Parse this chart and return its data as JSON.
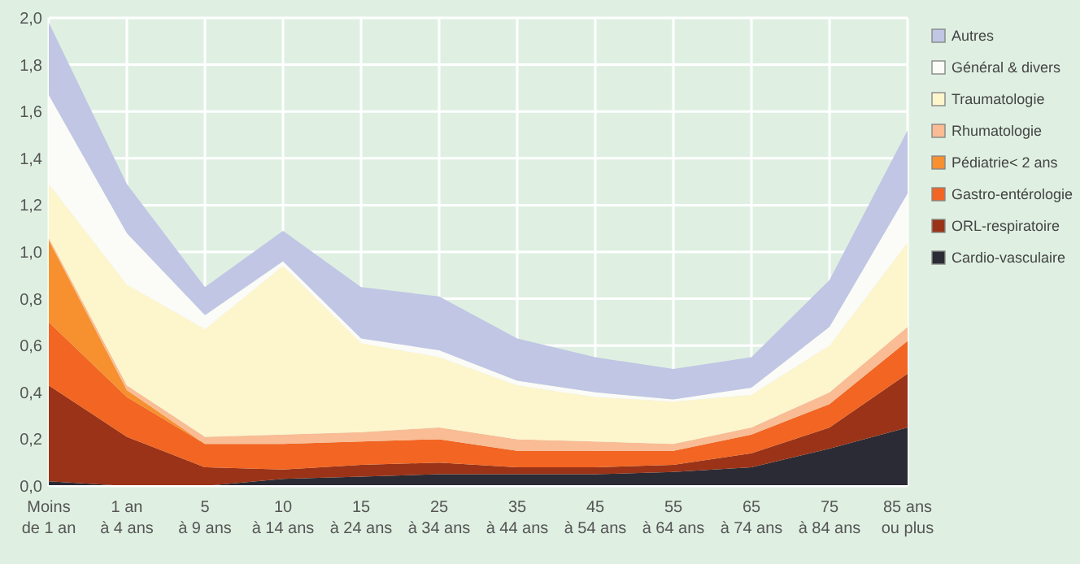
{
  "chart_data": {
    "type": "area",
    "stacked": true,
    "grid": true,
    "legend": "right",
    "categories": [
      "Moins\nde 1 an",
      "1 an\nà 4 ans",
      "5\nà 9 ans",
      "10\nà 14 ans",
      "15\nà 24 ans",
      "25\nà 34 ans",
      "35\nà 44 ans",
      "45\nà 54 ans",
      "55\nà 64 ans",
      "65\nà 74 ans",
      "75\nà 84 ans",
      "85 ans\nou plus"
    ],
    "ylim": [
      0,
      2
    ],
    "yticks": [
      {
        "value": 0,
        "label": "0,0"
      },
      {
        "value": 0.2,
        "label": "0,2"
      },
      {
        "value": 0.4,
        "label": "0,4"
      },
      {
        "value": 0.6,
        "label": "0,6"
      },
      {
        "value": 0.8,
        "label": "0,8"
      },
      {
        "value": 1,
        "label": "1,0"
      },
      {
        "value": 1.2,
        "label": "1,2"
      },
      {
        "value": 1.4,
        "label": "1,4"
      },
      {
        "value": 1.6,
        "label": "1,6"
      },
      {
        "value": 1.8,
        "label": "1,8"
      },
      {
        "value": 2,
        "label": "2,0"
      }
    ],
    "series": [
      {
        "name": "Cardio-vasculaire",
        "color": "#2b2b35",
        "values": [
          0.02,
          0,
          0,
          0.03,
          0.04,
          0.05,
          0.05,
          0.05,
          0.06,
          0.08,
          0.16,
          0.25
        ]
      },
      {
        "name": "ORL-respiratoire",
        "color": "#9a3318",
        "values": [
          0.41,
          0.21,
          0.08,
          0.04,
          0.05,
          0.05,
          0.03,
          0.03,
          0.03,
          0.06,
          0.09,
          0.23
        ]
      },
      {
        "name": "Gastro-entérologie",
        "color": "#f26522",
        "values": [
          0.27,
          0.17,
          0.1,
          0.11,
          0.1,
          0.1,
          0.07,
          0.07,
          0.06,
          0.08,
          0.1,
          0.14
        ]
      },
      {
        "name": "Pédiatrie< 2 ans",
        "color": "#f7902f",
        "values": [
          0.35,
          0.03,
          0,
          0,
          0,
          0,
          0,
          0,
          0,
          0,
          0,
          0
        ]
      },
      {
        "name": "Rhumatologie",
        "color": "#f9bc94",
        "values": [
          0.01,
          0.02,
          0.03,
          0.04,
          0.04,
          0.05,
          0.05,
          0.04,
          0.03,
          0.03,
          0.05,
          0.06
        ]
      },
      {
        "name": "Traumatologie",
        "color": "#fdf5cc",
        "values": [
          0.23,
          0.43,
          0.46,
          0.72,
          0.38,
          0.3,
          0.23,
          0.19,
          0.18,
          0.14,
          0.2,
          0.36
        ]
      },
      {
        "name": "Général & divers",
        "color": "#fbfbf8",
        "values": [
          0.38,
          0.22,
          0.06,
          0.02,
          0.02,
          0.03,
          0.02,
          0.02,
          0.01,
          0.03,
          0.08,
          0.21
        ]
      },
      {
        "name": "Autres",
        "color": "#c0c6e4",
        "values": [
          0.31,
          0.21,
          0.12,
          0.13,
          0.22,
          0.23,
          0.18,
          0.15,
          0.13,
          0.13,
          0.2,
          0.27
        ]
      }
    ]
  }
}
